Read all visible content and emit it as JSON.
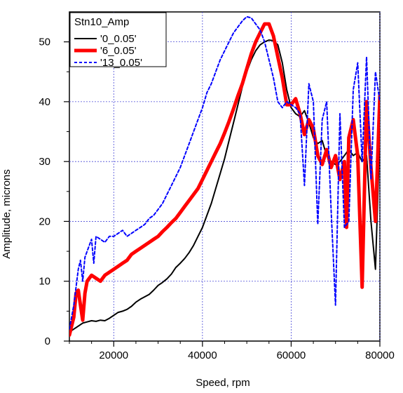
{
  "chart_data": {
    "type": "line",
    "title": "",
    "xlabel": "Speed, rpm",
    "ylabel": "Amplitude, microns",
    "xlim": [
      10000,
      80000
    ],
    "ylim": [
      0,
      55
    ],
    "xticks": [
      20000,
      40000,
      60000,
      80000
    ],
    "yticks": [
      0,
      10,
      20,
      30,
      40,
      50
    ],
    "grid": true,
    "legend_title": "Stn10_Amp",
    "legend_position": "top-left",
    "series": [
      {
        "name": "'0_0.05'",
        "color": "#000000",
        "style": "solid",
        "width": 2,
        "x": [
          10000,
          11000,
          12000,
          13000,
          14000,
          15000,
          16000,
          17000,
          18000,
          19000,
          20000,
          21000,
          22000,
          23000,
          24000,
          25000,
          26000,
          27000,
          28000,
          29000,
          30000,
          31000,
          32000,
          33000,
          34000,
          35000,
          36000,
          37000,
          38000,
          39000,
          40000,
          41000,
          42000,
          43000,
          44000,
          45000,
          46000,
          47000,
          48000,
          49000,
          50000,
          51000,
          52000,
          53000,
          54000,
          55000,
          56000,
          57000,
          58000,
          59000,
          60000,
          61000,
          62000,
          63000,
          64000,
          65000,
          66000,
          67000,
          68000,
          69000,
          70000,
          71000,
          72000,
          73000,
          74000,
          75000,
          76000,
          77000,
          78000,
          79000,
          80000
        ],
        "y": [
          1.5,
          2,
          2.5,
          3,
          3.2,
          3.4,
          3.3,
          3.5,
          3.4,
          3.8,
          4.3,
          4.8,
          5,
          5.3,
          5.8,
          6.5,
          7,
          7.4,
          7.8,
          8.5,
          9.3,
          9.8,
          10.4,
          11.2,
          12.3,
          13,
          13.8,
          14.8,
          16,
          17.5,
          19,
          21,
          23,
          25.5,
          28,
          30.5,
          33.5,
          36.5,
          39.5,
          42.5,
          45,
          47,
          48.5,
          49.5,
          50,
          50.3,
          50.2,
          49.5,
          46.5,
          42,
          39,
          38,
          37.5,
          38.5,
          36.5,
          34,
          33,
          33.5,
          31,
          30,
          29.5,
          30,
          31,
          32,
          31,
          31.5,
          30,
          31,
          20,
          12,
          35
        ]
      },
      {
        "name": "'6_0.05'",
        "color": "#ff0000",
        "style": "solid",
        "width": 5,
        "x": [
          10000,
          11000,
          11500,
          12000,
          12500,
          13000,
          13500,
          14000,
          15000,
          16000,
          17000,
          18000,
          19000,
          20000,
          21000,
          22000,
          23000,
          24000,
          25000,
          26000,
          27000,
          28000,
          29000,
          30000,
          31000,
          32000,
          33000,
          34000,
          35000,
          36000,
          37000,
          38000,
          39000,
          40000,
          41000,
          42000,
          43000,
          44000,
          45000,
          46000,
          47000,
          48000,
          49000,
          50000,
          51000,
          52000,
          53000,
          54000,
          55000,
          56000,
          57000,
          58000,
          59000,
          60000,
          61000,
          62000,
          63000,
          64000,
          65000,
          66000,
          67000,
          68000,
          69000,
          70000,
          71000,
          72000,
          72500,
          73000,
          74000,
          75000,
          76000,
          77000,
          78000,
          79000,
          80000
        ],
        "y": [
          1,
          4,
          8,
          8.5,
          6,
          3.5,
          8,
          10,
          11,
          10.5,
          10,
          11,
          11.5,
          12,
          12.5,
          13,
          13.5,
          14.5,
          15,
          15.5,
          16,
          16.5,
          17,
          17.5,
          18.3,
          19,
          19.8,
          20.5,
          21.5,
          22.5,
          23.5,
          24.5,
          25.5,
          27,
          28.5,
          30,
          31.5,
          33,
          34.8,
          36.7,
          38.8,
          41,
          43,
          45.5,
          48,
          50,
          51.5,
          53,
          53,
          51,
          47.5,
          44,
          39.5,
          39.5,
          40.5,
          38,
          34.5,
          37,
          35.5,
          31,
          29.5,
          32,
          29,
          31,
          27,
          30,
          19,
          34,
          37,
          31,
          9,
          40,
          29,
          20,
          41
        ]
      },
      {
        "name": "'13_0.05'",
        "color": "#0000ff",
        "style": "dashed",
        "width": 2,
        "x": [
          10000,
          11000,
          12000,
          12500,
          13000,
          13500,
          14000,
          15000,
          15500,
          16000,
          17000,
          18000,
          19000,
          20000,
          21000,
          22000,
          23000,
          24000,
          25000,
          26000,
          27000,
          28000,
          29000,
          30000,
          31000,
          32000,
          33000,
          34000,
          35000,
          36000,
          37000,
          38000,
          39000,
          40000,
          41000,
          42000,
          43000,
          44000,
          45000,
          46000,
          47000,
          48000,
          49000,
          50000,
          51000,
          52000,
          53000,
          54000,
          55000,
          56000,
          57000,
          58000,
          59000,
          60000,
          61000,
          62000,
          63000,
          64000,
          65000,
          66000,
          67000,
          68000,
          69000,
          70000,
          71000,
          72000,
          73000,
          74000,
          75000,
          76000,
          77000,
          78000,
          79000,
          80000
        ],
        "y": [
          2,
          6,
          12,
          13.5,
          10,
          14,
          15,
          17,
          13,
          17.5,
          17,
          16.5,
          17.5,
          17.5,
          18,
          18.5,
          17.5,
          18,
          18.5,
          19,
          19.5,
          20.5,
          21,
          22,
          23,
          24.5,
          26,
          27.5,
          29,
          31,
          33,
          35,
          37,
          39,
          41.5,
          43,
          45,
          47,
          48.5,
          50,
          51.5,
          52.5,
          53.5,
          54.2,
          54,
          53,
          52,
          50,
          47,
          44,
          40,
          39,
          40,
          39.5,
          39,
          38,
          26,
          43,
          40,
          19.5,
          37,
          40,
          22,
          6,
          38,
          19,
          20,
          42,
          46.5,
          30,
          47.5,
          27,
          45,
          40
        ]
      }
    ]
  }
}
